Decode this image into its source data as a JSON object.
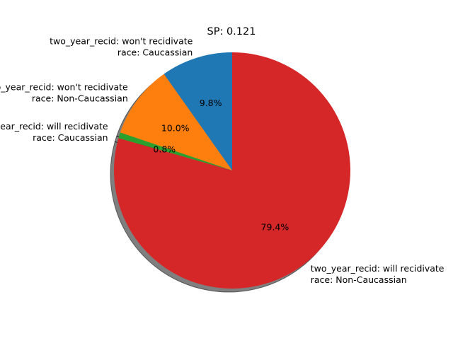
{
  "chart_data": {
    "type": "pie",
    "title": "SP: 0.121",
    "shadow": true,
    "start_angle_deg": 90,
    "direction": "counterclockwise",
    "slices": [
      {
        "label_lines": [
          "two_year_recid: won't recidivate",
          "race: Caucassian"
        ],
        "pct_label": "9.8%",
        "value": 9.8,
        "color": "#1f77b4"
      },
      {
        "label_lines": [
          "two_year_recid: won't recidivate",
          "race: Non-Caucassian"
        ],
        "pct_label": "10.0%",
        "value": 10.0,
        "color": "#ff7f0e"
      },
      {
        "label_lines": [
          "two_year_recid: will recidivate",
          "race: Caucassian"
        ],
        "pct_label": "0.8%",
        "value": 0.8,
        "color": "#2ca02c"
      },
      {
        "label_lines": [
          "two_year_recid: will recidivate",
          "race: Non-Caucassian"
        ],
        "pct_label": "79.4%",
        "value": 79.4,
        "color": "#d62728"
      }
    ]
  }
}
